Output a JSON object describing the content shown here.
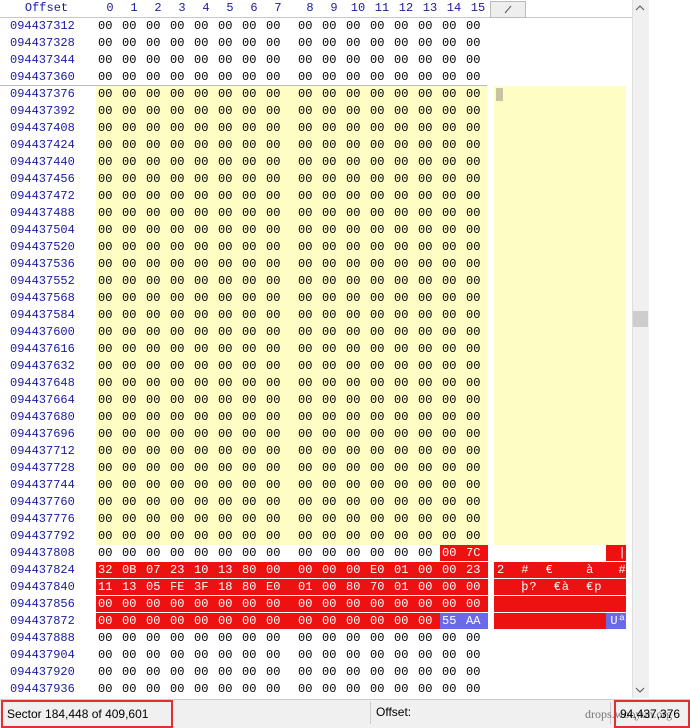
{
  "header": {
    "offset_label": "Offset",
    "columns": [
      0,
      1,
      2,
      3,
      4,
      5,
      6,
      7,
      8,
      9,
      10,
      11,
      12,
      13,
      14,
      15
    ]
  },
  "rows": [
    {
      "offset": "094437312",
      "bytes": [
        "00",
        "00",
        "00",
        "00",
        "00",
        "00",
        "00",
        "00",
        "00",
        "00",
        "00",
        "00",
        "00",
        "00",
        "00",
        "00"
      ]
    },
    {
      "offset": "094437328",
      "bytes": [
        "00",
        "00",
        "00",
        "00",
        "00",
        "00",
        "00",
        "00",
        "00",
        "00",
        "00",
        "00",
        "00",
        "00",
        "00",
        "00"
      ]
    },
    {
      "offset": "094437344",
      "bytes": [
        "00",
        "00",
        "00",
        "00",
        "00",
        "00",
        "00",
        "00",
        "00",
        "00",
        "00",
        "00",
        "00",
        "00",
        "00",
        "00"
      ]
    },
    {
      "offset": "094437360",
      "bytes": [
        "00",
        "00",
        "00",
        "00",
        "00",
        "00",
        "00",
        "00",
        "00",
        "00",
        "00",
        "00",
        "00",
        "00",
        "00",
        "00"
      ]
    },
    {
      "offset": "094437376",
      "bytes": [
        "00",
        "00",
        "00",
        "00",
        "00",
        "00",
        "00",
        "00",
        "00",
        "00",
        "00",
        "00",
        "00",
        "00",
        "00",
        "00"
      ]
    },
    {
      "offset": "094437392",
      "bytes": [
        "00",
        "00",
        "00",
        "00",
        "00",
        "00",
        "00",
        "00",
        "00",
        "00",
        "00",
        "00",
        "00",
        "00",
        "00",
        "00"
      ]
    },
    {
      "offset": "094437408",
      "bytes": [
        "00",
        "00",
        "00",
        "00",
        "00",
        "00",
        "00",
        "00",
        "00",
        "00",
        "00",
        "00",
        "00",
        "00",
        "00",
        "00"
      ]
    },
    {
      "offset": "094437424",
      "bytes": [
        "00",
        "00",
        "00",
        "00",
        "00",
        "00",
        "00",
        "00",
        "00",
        "00",
        "00",
        "00",
        "00",
        "00",
        "00",
        "00"
      ]
    },
    {
      "offset": "094437440",
      "bytes": [
        "00",
        "00",
        "00",
        "00",
        "00",
        "00",
        "00",
        "00",
        "00",
        "00",
        "00",
        "00",
        "00",
        "00",
        "00",
        "00"
      ]
    },
    {
      "offset": "094437456",
      "bytes": [
        "00",
        "00",
        "00",
        "00",
        "00",
        "00",
        "00",
        "00",
        "00",
        "00",
        "00",
        "00",
        "00",
        "00",
        "00",
        "00"
      ]
    },
    {
      "offset": "094437472",
      "bytes": [
        "00",
        "00",
        "00",
        "00",
        "00",
        "00",
        "00",
        "00",
        "00",
        "00",
        "00",
        "00",
        "00",
        "00",
        "00",
        "00"
      ]
    },
    {
      "offset": "094437488",
      "bytes": [
        "00",
        "00",
        "00",
        "00",
        "00",
        "00",
        "00",
        "00",
        "00",
        "00",
        "00",
        "00",
        "00",
        "00",
        "00",
        "00"
      ]
    },
    {
      "offset": "094437504",
      "bytes": [
        "00",
        "00",
        "00",
        "00",
        "00",
        "00",
        "00",
        "00",
        "00",
        "00",
        "00",
        "00",
        "00",
        "00",
        "00",
        "00"
      ]
    },
    {
      "offset": "094437520",
      "bytes": [
        "00",
        "00",
        "00",
        "00",
        "00",
        "00",
        "00",
        "00",
        "00",
        "00",
        "00",
        "00",
        "00",
        "00",
        "00",
        "00"
      ]
    },
    {
      "offset": "094437536",
      "bytes": [
        "00",
        "00",
        "00",
        "00",
        "00",
        "00",
        "00",
        "00",
        "00",
        "00",
        "00",
        "00",
        "00",
        "00",
        "00",
        "00"
      ]
    },
    {
      "offset": "094437552",
      "bytes": [
        "00",
        "00",
        "00",
        "00",
        "00",
        "00",
        "00",
        "00",
        "00",
        "00",
        "00",
        "00",
        "00",
        "00",
        "00",
        "00"
      ]
    },
    {
      "offset": "094437568",
      "bytes": [
        "00",
        "00",
        "00",
        "00",
        "00",
        "00",
        "00",
        "00",
        "00",
        "00",
        "00",
        "00",
        "00",
        "00",
        "00",
        "00"
      ]
    },
    {
      "offset": "094437584",
      "bytes": [
        "00",
        "00",
        "00",
        "00",
        "00",
        "00",
        "00",
        "00",
        "00",
        "00",
        "00",
        "00",
        "00",
        "00",
        "00",
        "00"
      ]
    },
    {
      "offset": "094437600",
      "bytes": [
        "00",
        "00",
        "00",
        "00",
        "00",
        "00",
        "00",
        "00",
        "00",
        "00",
        "00",
        "00",
        "00",
        "00",
        "00",
        "00"
      ]
    },
    {
      "offset": "094437616",
      "bytes": [
        "00",
        "00",
        "00",
        "00",
        "00",
        "00",
        "00",
        "00",
        "00",
        "00",
        "00",
        "00",
        "00",
        "00",
        "00",
        "00"
      ]
    },
    {
      "offset": "094437632",
      "bytes": [
        "00",
        "00",
        "00",
        "00",
        "00",
        "00",
        "00",
        "00",
        "00",
        "00",
        "00",
        "00",
        "00",
        "00",
        "00",
        "00"
      ]
    },
    {
      "offset": "094437648",
      "bytes": [
        "00",
        "00",
        "00",
        "00",
        "00",
        "00",
        "00",
        "00",
        "00",
        "00",
        "00",
        "00",
        "00",
        "00",
        "00",
        "00"
      ]
    },
    {
      "offset": "094437664",
      "bytes": [
        "00",
        "00",
        "00",
        "00",
        "00",
        "00",
        "00",
        "00",
        "00",
        "00",
        "00",
        "00",
        "00",
        "00",
        "00",
        "00"
      ]
    },
    {
      "offset": "094437680",
      "bytes": [
        "00",
        "00",
        "00",
        "00",
        "00",
        "00",
        "00",
        "00",
        "00",
        "00",
        "00",
        "00",
        "00",
        "00",
        "00",
        "00"
      ]
    },
    {
      "offset": "094437696",
      "bytes": [
        "00",
        "00",
        "00",
        "00",
        "00",
        "00",
        "00",
        "00",
        "00",
        "00",
        "00",
        "00",
        "00",
        "00",
        "00",
        "00"
      ]
    },
    {
      "offset": "094437712",
      "bytes": [
        "00",
        "00",
        "00",
        "00",
        "00",
        "00",
        "00",
        "00",
        "00",
        "00",
        "00",
        "00",
        "00",
        "00",
        "00",
        "00"
      ]
    },
    {
      "offset": "094437728",
      "bytes": [
        "00",
        "00",
        "00",
        "00",
        "00",
        "00",
        "00",
        "00",
        "00",
        "00",
        "00",
        "00",
        "00",
        "00",
        "00",
        "00"
      ]
    },
    {
      "offset": "094437744",
      "bytes": [
        "00",
        "00",
        "00",
        "00",
        "00",
        "00",
        "00",
        "00",
        "00",
        "00",
        "00",
        "00",
        "00",
        "00",
        "00",
        "00"
      ]
    },
    {
      "offset": "094437760",
      "bytes": [
        "00",
        "00",
        "00",
        "00",
        "00",
        "00",
        "00",
        "00",
        "00",
        "00",
        "00",
        "00",
        "00",
        "00",
        "00",
        "00"
      ]
    },
    {
      "offset": "094437776",
      "bytes": [
        "00",
        "00",
        "00",
        "00",
        "00",
        "00",
        "00",
        "00",
        "00",
        "00",
        "00",
        "00",
        "00",
        "00",
        "00",
        "00"
      ]
    },
    {
      "offset": "094437792",
      "bytes": [
        "00",
        "00",
        "00",
        "00",
        "00",
        "00",
        "00",
        "00",
        "00",
        "00",
        "00",
        "00",
        "00",
        "00",
        "00",
        "00"
      ]
    },
    {
      "offset": "094437808",
      "bytes": [
        "00",
        "00",
        "00",
        "00",
        "00",
        "00",
        "00",
        "00",
        "00",
        "00",
        "00",
        "00",
        "00",
        "00",
        "00",
        "7C"
      ],
      "ascii": "               |"
    },
    {
      "offset": "094437824",
      "bytes": [
        "32",
        "0B",
        "07",
        "23",
        "10",
        "13",
        "80",
        "00",
        "00",
        "00",
        "00",
        "E0",
        "01",
        "00",
        "00",
        "23"
      ],
      "ascii": "2  #  €    à   #"
    },
    {
      "offset": "094437840",
      "bytes": [
        "11",
        "13",
        "05",
        "FE",
        "3F",
        "18",
        "80",
        "E0",
        "01",
        "00",
        "80",
        "70",
        "01",
        "00",
        "00",
        "00"
      ],
      "ascii": "   þ?  €à  €p   "
    },
    {
      "offset": "094437856",
      "bytes": [
        "00",
        "00",
        "00",
        "00",
        "00",
        "00",
        "00",
        "00",
        "00",
        "00",
        "00",
        "00",
        "00",
        "00",
        "00",
        "00"
      ]
    },
    {
      "offset": "094437872",
      "bytes": [
        "00",
        "00",
        "00",
        "00",
        "00",
        "00",
        "00",
        "00",
        "00",
        "00",
        "00",
        "00",
        "00",
        "00",
        "55",
        "AA"
      ],
      "ascii": "              Uª"
    },
    {
      "offset": "094437888",
      "bytes": [
        "00",
        "00",
        "00",
        "00",
        "00",
        "00",
        "00",
        "00",
        "00",
        "00",
        "00",
        "00",
        "00",
        "00",
        "00",
        "00"
      ]
    },
    {
      "offset": "094437904",
      "bytes": [
        "00",
        "00",
        "00",
        "00",
        "00",
        "00",
        "00",
        "00",
        "00",
        "00",
        "00",
        "00",
        "00",
        "00",
        "00",
        "00"
      ]
    },
    {
      "offset": "094437920",
      "bytes": [
        "00",
        "00",
        "00",
        "00",
        "00",
        "00",
        "00",
        "00",
        "00",
        "00",
        "00",
        "00",
        "00",
        "00",
        "00",
        "00"
      ]
    },
    {
      "offset": "094437936",
      "bytes": [
        "00",
        "00",
        "00",
        "00",
        "00",
        "00",
        "00",
        "00",
        "00",
        "00",
        "00",
        "00",
        "00",
        "00",
        "00",
        "00"
      ]
    }
  ],
  "status": {
    "sector": "Sector 184,448 of 409,601",
    "offset_label": "Offset:",
    "offset_value": "94,437,376",
    "watermark": "drops.wooyun.org"
  }
}
